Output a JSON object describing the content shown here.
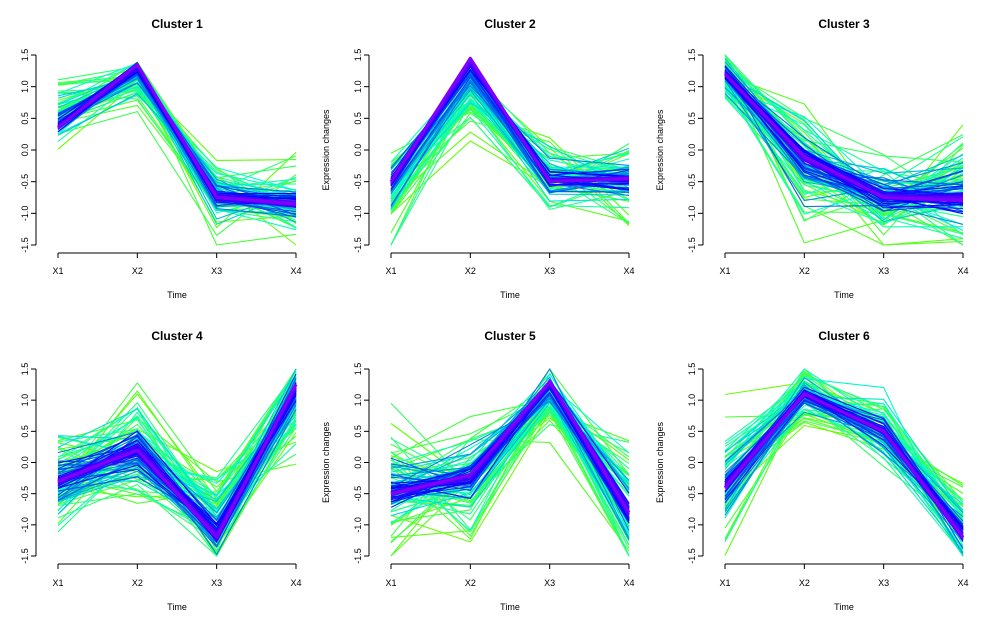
{
  "figure": {
    "xlabel": "Time",
    "ylabel": "Expression changes",
    "x_tick_labels": [
      "X1",
      "X2",
      "X3",
      "X4"
    ],
    "y_tick_labels": [
      "-1.5",
      "-1.0",
      "-0.5",
      "0.0",
      "0.5",
      "1.0",
      "1.5"
    ],
    "colors": {
      "low_membership": "#66ff00",
      "mid_membership": "#00ffcc",
      "high_membership": "#0000ff",
      "core_membership": "#8000ff"
    }
  },
  "chart_data": [
    {
      "type": "line",
      "title": "Cluster 1",
      "xlabel": "Time",
      "ylabel": "Expression changes",
      "x": [
        "X1",
        "X2",
        "X3",
        "X4"
      ],
      "ylim": [
        -1.5,
        1.5
      ],
      "y_ticks": [
        -1.5,
        -1.0,
        -0.5,
        0.0,
        0.5,
        1.0,
        1.5
      ],
      "centroid": [
        0.35,
        1.35,
        -0.75,
        -0.85
      ],
      "spread": [
        0.55,
        0.35,
        0.6,
        0.6
      ],
      "spread_skew": [
        0.3,
        -0.35,
        0.05,
        0.0
      ],
      "n_profiles": 110
    },
    {
      "type": "line",
      "title": "Cluster 2",
      "xlabel": "Time",
      "ylabel": "Expression changes",
      "x": [
        "X1",
        "X2",
        "X3",
        "X4"
      ],
      "ylim": [
        -1.5,
        1.5
      ],
      "y_ticks": [
        -1.5,
        -1.0,
        -0.5,
        0.0,
        0.5,
        1.0,
        1.5
      ],
      "centroid": [
        -0.5,
        1.45,
        -0.5,
        -0.45
      ],
      "spread": [
        0.7,
        0.35,
        0.7,
        0.7
      ],
      "spread_skew": [
        -0.15,
        -0.8,
        0.1,
        0.0
      ],
      "n_profiles": 110
    },
    {
      "type": "line",
      "title": "Cluster 3",
      "xlabel": "Time",
      "ylabel": "Expression changes",
      "x": [
        "X1",
        "X2",
        "X3",
        "X4"
      ],
      "ylim": [
        -1.5,
        1.5
      ],
      "y_ticks": [
        -1.5,
        -1.0,
        -0.5,
        0.0,
        0.5,
        1.0,
        1.5
      ],
      "centroid": [
        1.2,
        -0.1,
        -0.75,
        -0.8
      ],
      "spread": [
        0.5,
        1.0,
        0.8,
        1.0
      ],
      "spread_skew": [
        0.0,
        -0.2,
        0.0,
        0.25
      ],
      "n_profiles": 130
    },
    {
      "type": "line",
      "title": "Cluster 4",
      "xlabel": "Time",
      "ylabel": "Expression changes",
      "x": [
        "X1",
        "X2",
        "X3",
        "X4"
      ],
      "ylim": [
        -1.5,
        1.5
      ],
      "y_ticks": [
        -1.5,
        -1.0,
        -0.5,
        0.0,
        0.5,
        1.0,
        1.5
      ],
      "centroid": [
        -0.3,
        0.2,
        -1.2,
        1.25
      ],
      "spread": [
        1.0,
        1.05,
        0.85,
        0.7
      ],
      "spread_skew": [
        0.0,
        0.0,
        0.35,
        -0.4
      ],
      "n_profiles": 140
    },
    {
      "type": "line",
      "title": "Cluster 5",
      "xlabel": "Time",
      "ylabel": "Expression changes",
      "x": [
        "X1",
        "X2",
        "X3",
        "X4"
      ],
      "ylim": [
        -1.5,
        1.5
      ],
      "y_ticks": [
        -1.5,
        -1.0,
        -0.5,
        0.0,
        0.5,
        1.0,
        1.5
      ],
      "centroid": [
        -0.5,
        -0.2,
        1.3,
        -0.8
      ],
      "spread": [
        1.0,
        0.85,
        0.5,
        1.0
      ],
      "spread_skew": [
        0.1,
        -0.1,
        -0.3,
        0.0
      ],
      "n_profiles": 130
    },
    {
      "type": "line",
      "title": "Cluster 6",
      "xlabel": "Time",
      "ylabel": "Expression changes",
      "x": [
        "X1",
        "X2",
        "X3",
        "X4"
      ],
      "ylim": [
        -1.5,
        1.5
      ],
      "y_ticks": [
        -1.5,
        -1.0,
        -0.5,
        0.0,
        0.5,
        1.0,
        1.5
      ],
      "centroid": [
        -0.4,
        1.1,
        0.5,
        -1.2
      ],
      "spread": [
        1.0,
        0.45,
        0.6,
        0.8
      ],
      "spread_skew": [
        0.0,
        0.0,
        0.0,
        0.35
      ],
      "n_profiles": 110
    }
  ]
}
